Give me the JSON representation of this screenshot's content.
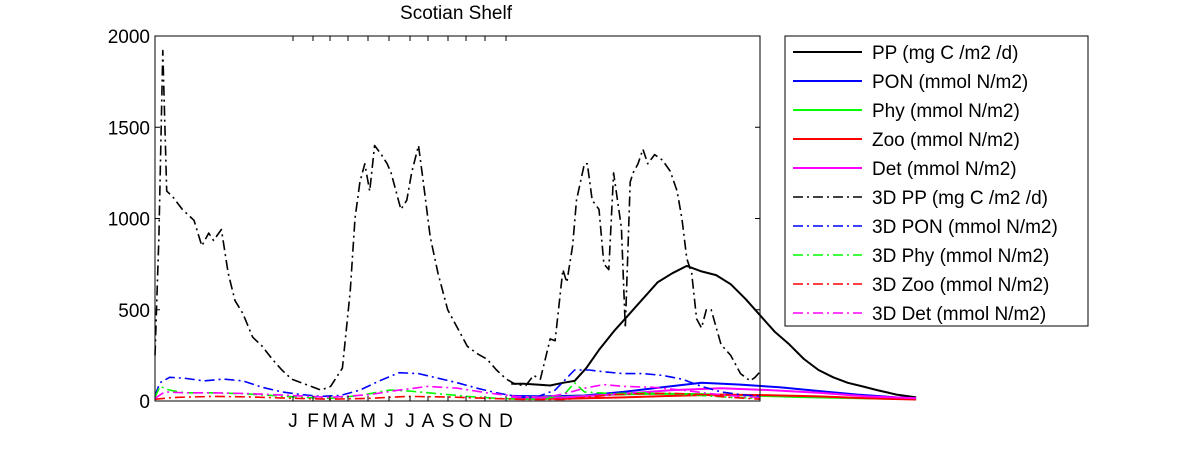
{
  "chart_data": {
    "type": "line",
    "title": "Scotian Shelf",
    "xlabel": "",
    "ylabel": "",
    "ylim": [
      0,
      2000
    ],
    "yticks": [
      0,
      500,
      1000,
      1500,
      2000
    ],
    "month_tick_labels": [
      "J",
      "F",
      "M",
      "A",
      "M",
      "J",
      "J",
      "A",
      "S",
      "O",
      "N",
      "D"
    ],
    "grid": false,
    "legend_position": "outside-right",
    "series": [
      {
        "name": "PP (mg C /m2 /d)",
        "color": "#000000",
        "style": "solid",
        "points": [
          [
            365,
            95
          ],
          [
            378,
            95
          ],
          [
            392,
            90
          ],
          [
            405,
            85
          ],
          [
            418,
            100
          ],
          [
            430,
            110
          ],
          [
            442,
            180
          ],
          [
            455,
            280
          ],
          [
            470,
            380
          ],
          [
            485,
            470
          ],
          [
            500,
            560
          ],
          [
            515,
            650
          ],
          [
            530,
            700
          ],
          [
            545,
            740
          ],
          [
            560,
            710
          ],
          [
            575,
            690
          ],
          [
            590,
            640
          ],
          [
            605,
            560
          ],
          [
            620,
            470
          ],
          [
            635,
            380
          ],
          [
            650,
            310
          ],
          [
            665,
            230
          ],
          [
            680,
            170
          ],
          [
            695,
            130
          ],
          [
            710,
            100
          ],
          [
            725,
            80
          ],
          [
            740,
            60
          ],
          [
            760,
            35
          ],
          [
            780,
            20
          ]
        ]
      },
      {
        "name": "PON (mmol N/m2)",
        "color": "#0000ff",
        "style": "solid",
        "points": [
          [
            365,
            28
          ],
          [
            400,
            25
          ],
          [
            440,
            30
          ],
          [
            480,
            50
          ],
          [
            520,
            75
          ],
          [
            560,
            100
          ],
          [
            600,
            90
          ],
          [
            640,
            75
          ],
          [
            680,
            55
          ],
          [
            720,
            35
          ],
          [
            760,
            20
          ],
          [
            780,
            15
          ]
        ]
      },
      {
        "name": "Phy (mmol N/m2)",
        "color": "#00ff00",
        "style": "solid",
        "points": [
          [
            365,
            20
          ],
          [
            420,
            22
          ],
          [
            470,
            35
          ],
          [
            510,
            40
          ],
          [
            560,
            38
          ],
          [
            610,
            30
          ],
          [
            660,
            22
          ],
          [
            720,
            15
          ],
          [
            780,
            10
          ]
        ]
      },
      {
        "name": "Zoo (mmol N/m2)",
        "color": "#ff0000",
        "style": "solid",
        "points": [
          [
            365,
            12
          ],
          [
            420,
            12
          ],
          [
            480,
            20
          ],
          [
            530,
            28
          ],
          [
            580,
            35
          ],
          [
            630,
            32
          ],
          [
            680,
            25
          ],
          [
            730,
            15
          ],
          [
            780,
            8
          ]
        ]
      },
      {
        "name": "Det (mmol N/m2)",
        "color": "#ff00ff",
        "style": "solid",
        "points": [
          [
            365,
            18
          ],
          [
            420,
            20
          ],
          [
            480,
            40
          ],
          [
            530,
            60
          ],
          [
            580,
            70
          ],
          [
            630,
            60
          ],
          [
            680,
            45
          ],
          [
            730,
            25
          ],
          [
            780,
            15
          ]
        ]
      },
      {
        "name": "3D PP (mg C /m2 /d)",
        "color": "#000000",
        "style": "dashdot",
        "points": [
          [
            0,
            250
          ],
          [
            4,
            900
          ],
          [
            8,
            1920
          ],
          [
            12,
            1150
          ],
          [
            18,
            1120
          ],
          [
            28,
            1050
          ],
          [
            40,
            990
          ],
          [
            48,
            850
          ],
          [
            55,
            920
          ],
          [
            60,
            880
          ],
          [
            68,
            940
          ],
          [
            75,
            700
          ],
          [
            82,
            550
          ],
          [
            90,
            480
          ],
          [
            100,
            350
          ],
          [
            110,
            300
          ],
          [
            120,
            230
          ],
          [
            130,
            170
          ],
          [
            140,
            120
          ],
          [
            150,
            100
          ],
          [
            160,
            80
          ],
          [
            170,
            60
          ],
          [
            180,
            80
          ],
          [
            192,
            180
          ],
          [
            200,
            600
          ],
          [
            205,
            1000
          ],
          [
            210,
            1200
          ],
          [
            215,
            1300
          ],
          [
            220,
            1150
          ],
          [
            225,
            1400
          ],
          [
            232,
            1350
          ],
          [
            238,
            1300
          ],
          [
            242,
            1250
          ],
          [
            247,
            1150
          ],
          [
            252,
            1050
          ],
          [
            258,
            1100
          ],
          [
            263,
            1250
          ],
          [
            270,
            1400
          ],
          [
            275,
            1200
          ],
          [
            282,
            900
          ],
          [
            290,
            700
          ],
          [
            300,
            500
          ],
          [
            310,
            400
          ],
          [
            320,
            300
          ],
          [
            330,
            260
          ],
          [
            340,
            230
          ],
          [
            350,
            170
          ],
          [
            360,
            120
          ],
          [
            370,
            90
          ],
          [
            380,
            85
          ],
          [
            388,
            140
          ],
          [
            395,
            120
          ],
          [
            405,
            340
          ],
          [
            410,
            330
          ],
          [
            418,
            720
          ],
          [
            422,
            650
          ],
          [
            428,
            850
          ],
          [
            432,
            1100
          ],
          [
            440,
            1300
          ],
          [
            443,
            1300
          ],
          [
            448,
            1100
          ],
          [
            455,
            1050
          ],
          [
            460,
            750
          ],
          [
            465,
            720
          ],
          [
            470,
            1250
          ],
          [
            478,
            950
          ],
          [
            482,
            400
          ],
          [
            487,
            1200
          ],
          [
            490,
            1250
          ],
          [
            495,
            1300
          ],
          [
            500,
            1380
          ],
          [
            505,
            1300
          ],
          [
            512,
            1350
          ],
          [
            520,
            1320
          ],
          [
            528,
            1260
          ],
          [
            535,
            1150
          ],
          [
            540,
            1000
          ],
          [
            545,
            780
          ],
          [
            550,
            700
          ],
          [
            555,
            450
          ],
          [
            560,
            400
          ],
          [
            565,
            500
          ],
          [
            570,
            500
          ],
          [
            580,
            310
          ],
          [
            590,
            250
          ],
          [
            600,
            150
          ],
          [
            610,
            110
          ],
          [
            615,
            130
          ],
          [
            620,
            160
          ]
        ]
      },
      {
        "name": "3D PON (mmol N/m2)",
        "color": "#0000ff",
        "style": "dashdot",
        "points": [
          [
            0,
            30
          ],
          [
            5,
            100
          ],
          [
            15,
            130
          ],
          [
            30,
            125
          ],
          [
            50,
            110
          ],
          [
            70,
            120
          ],
          [
            90,
            110
          ],
          [
            110,
            75
          ],
          [
            130,
            50
          ],
          [
            150,
            35
          ],
          [
            170,
            25
          ],
          [
            190,
            30
          ],
          [
            210,
            60
          ],
          [
            230,
            110
          ],
          [
            250,
            155
          ],
          [
            270,
            150
          ],
          [
            290,
            125
          ],
          [
            310,
            100
          ],
          [
            330,
            70
          ],
          [
            350,
            45
          ],
          [
            370,
            25
          ],
          [
            380,
            20
          ],
          [
            390,
            20
          ],
          [
            410,
            60
          ],
          [
            430,
            170
          ],
          [
            445,
            170
          ],
          [
            460,
            160
          ],
          [
            480,
            150
          ],
          [
            500,
            150
          ],
          [
            520,
            140
          ],
          [
            540,
            120
          ],
          [
            560,
            80
          ],
          [
            580,
            50
          ],
          [
            600,
            35
          ],
          [
            610,
            30
          ],
          [
            620,
            28
          ]
        ]
      },
      {
        "name": "3D Phy (mmol N/m2)",
        "color": "#00ff00",
        "style": "dashdot",
        "points": [
          [
            0,
            20
          ],
          [
            5,
            80
          ],
          [
            15,
            60
          ],
          [
            30,
            45
          ],
          [
            60,
            45
          ],
          [
            90,
            40
          ],
          [
            120,
            30
          ],
          [
            150,
            20
          ],
          [
            180,
            15
          ],
          [
            210,
            30
          ],
          [
            240,
            60
          ],
          [
            260,
            55
          ],
          [
            290,
            40
          ],
          [
            320,
            25
          ],
          [
            350,
            15
          ],
          [
            380,
            10
          ],
          [
            400,
            10
          ],
          [
            420,
            40
          ],
          [
            430,
            100
          ],
          [
            440,
            50
          ],
          [
            470,
            40
          ],
          [
            500,
            45
          ],
          [
            530,
            40
          ],
          [
            560,
            30
          ],
          [
            590,
            20
          ],
          [
            620,
            15
          ]
        ]
      },
      {
        "name": "3D Zoo (mmol N/m2)",
        "color": "#ff0000",
        "style": "dashdot",
        "points": [
          [
            0,
            10
          ],
          [
            20,
            20
          ],
          [
            60,
            25
          ],
          [
            100,
            22
          ],
          [
            140,
            15
          ],
          [
            180,
            10
          ],
          [
            220,
            15
          ],
          [
            260,
            25
          ],
          [
            300,
            22
          ],
          [
            340,
            15
          ],
          [
            380,
            8
          ],
          [
            420,
            8
          ],
          [
            440,
            20
          ],
          [
            470,
            35
          ],
          [
            500,
            40
          ],
          [
            530,
            42
          ],
          [
            560,
            35
          ],
          [
            590,
            20
          ],
          [
            620,
            10
          ]
        ]
      },
      {
        "name": "3D Det (mmol N/m2)",
        "color": "#ff00ff",
        "style": "dashdot",
        "points": [
          [
            0,
            15
          ],
          [
            10,
            50
          ],
          [
            30,
            45
          ],
          [
            60,
            45
          ],
          [
            100,
            40
          ],
          [
            140,
            30
          ],
          [
            180,
            20
          ],
          [
            220,
            35
          ],
          [
            250,
            60
          ],
          [
            280,
            80
          ],
          [
            310,
            70
          ],
          [
            340,
            45
          ],
          [
            370,
            25
          ],
          [
            400,
            20
          ],
          [
            420,
            40
          ],
          [
            440,
            70
          ],
          [
            460,
            90
          ],
          [
            480,
            80
          ],
          [
            510,
            75
          ],
          [
            540,
            60
          ],
          [
            570,
            40
          ],
          [
            600,
            25
          ],
          [
            620,
            20
          ]
        ]
      }
    ]
  }
}
